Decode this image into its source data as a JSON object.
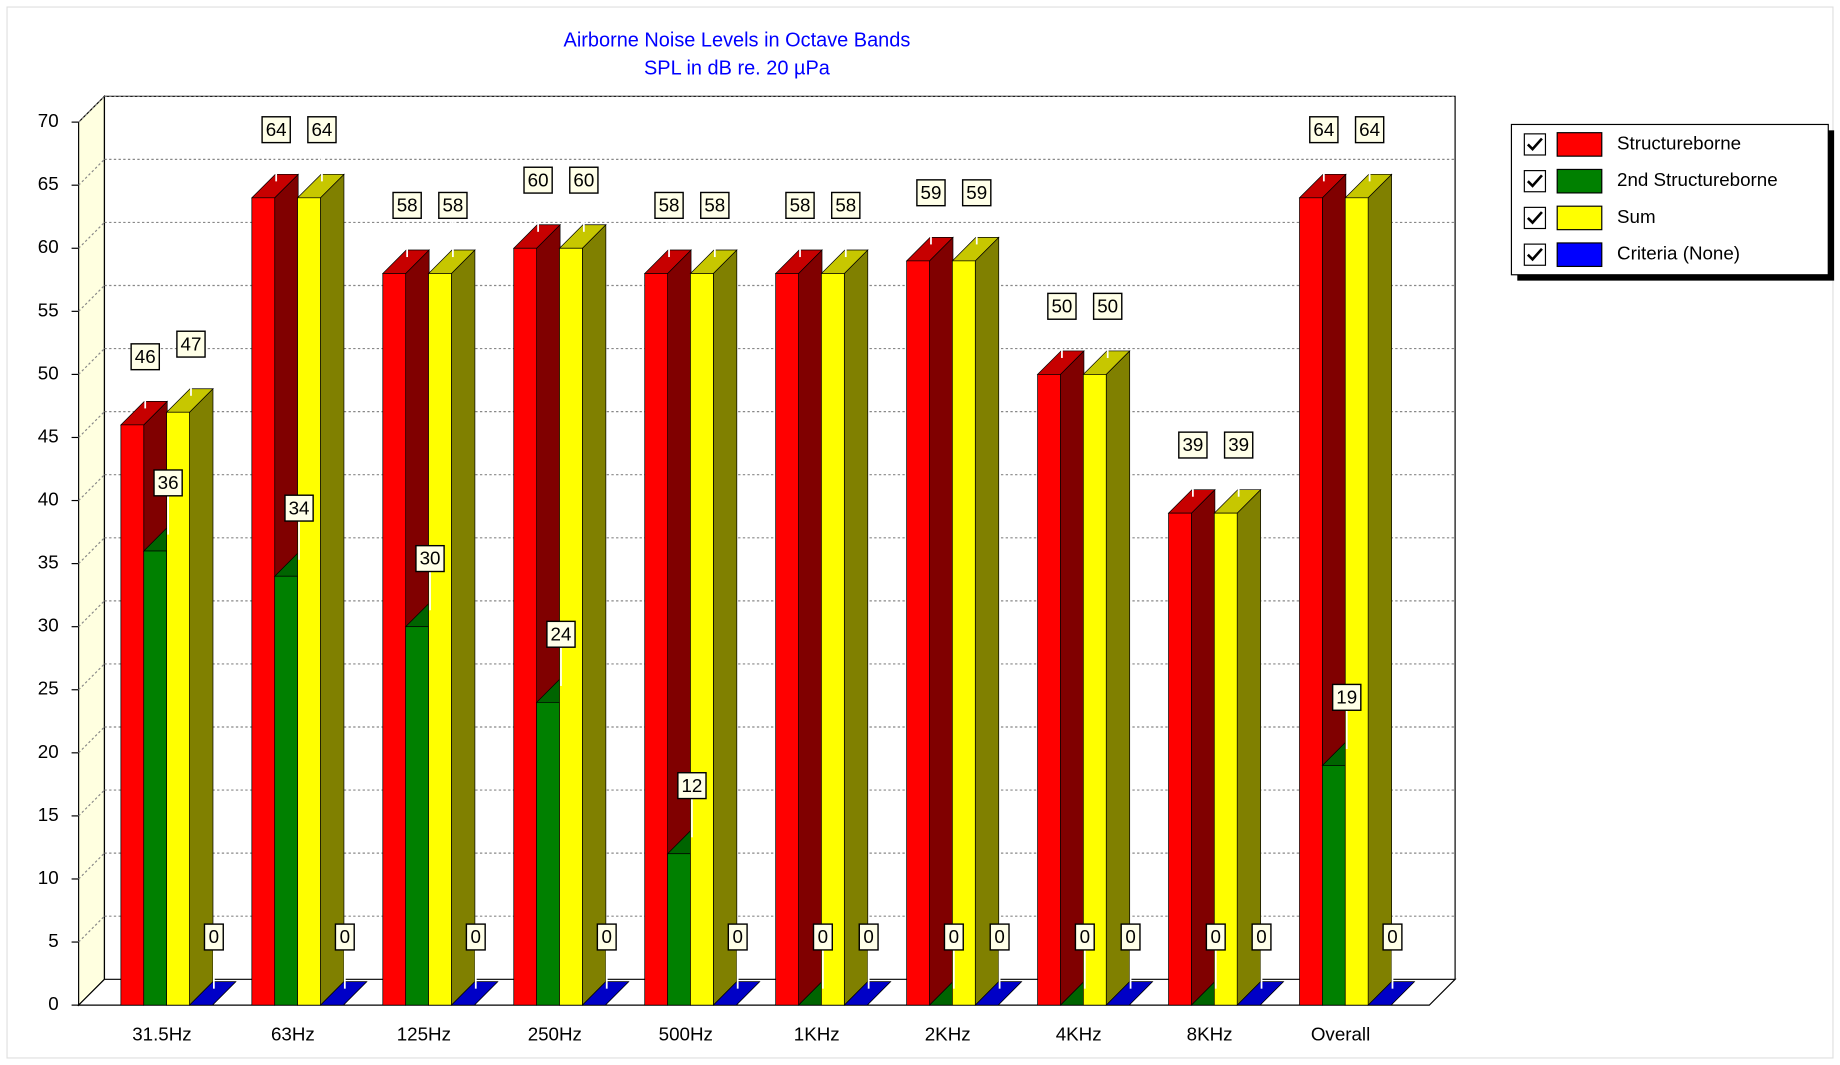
{
  "chart_data": {
    "type": "bar",
    "title": "Airborne Noise Levels in Octave Bands",
    "subtitle": "SPL in dB re. 20 µPa",
    "categories": [
      "31.5Hz",
      "63Hz",
      "125Hz",
      "250Hz",
      "500Hz",
      "1KHz",
      "2KHz",
      "4KHz",
      "8KHz",
      "Overall"
    ],
    "series": [
      {
        "name": "Structureborne",
        "color": "#ff0000",
        "values": [
          46,
          64,
          58,
          60,
          58,
          58,
          59,
          50,
          39,
          64
        ]
      },
      {
        "name": "2nd Structureborne",
        "color": "#008000",
        "values": [
          36,
          34,
          30,
          24,
          12,
          0,
          0,
          0,
          0,
          19
        ]
      },
      {
        "name": "Sum",
        "color": "#ffff00",
        "values": [
          47,
          64,
          58,
          60,
          58,
          58,
          59,
          50,
          39,
          64
        ]
      },
      {
        "name": "Criteria (None)",
        "color": "#0000ff",
        "values": [
          0,
          0,
          0,
          0,
          0,
          0,
          0,
          0,
          0,
          0
        ]
      }
    ],
    "ylim": [
      0,
      70
    ],
    "yticks": [
      0,
      5,
      10,
      15,
      20,
      25,
      30,
      35,
      40,
      45,
      50,
      55,
      60,
      65,
      70
    ],
    "grid": true,
    "legend": "right"
  }
}
